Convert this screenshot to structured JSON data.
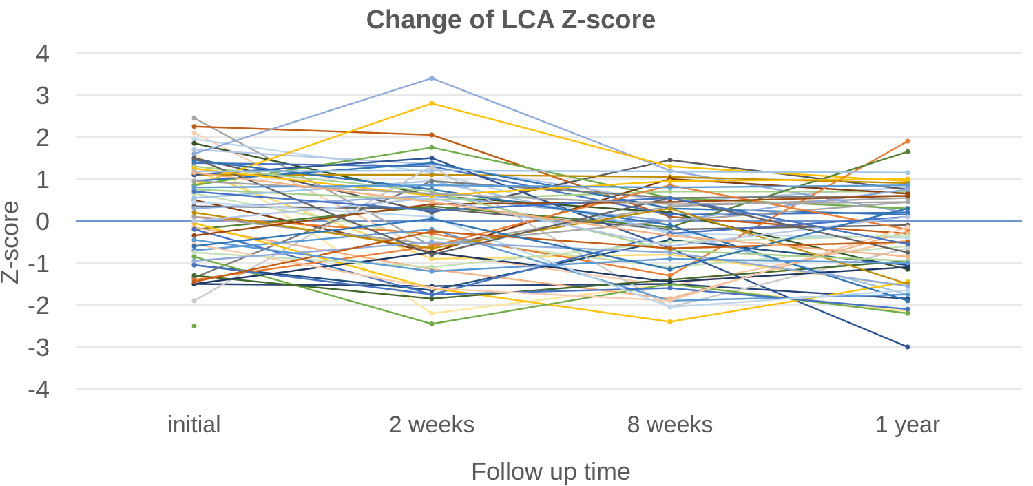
{
  "title": "Change of LCA Z-score",
  "chart_data": {
    "type": "line",
    "title": "Change of LCA Z-score",
    "xlabel": "Follow up time",
    "ylabel": "Z-score",
    "categories": [
      "initial",
      "2 weeks",
      "8 weeks",
      "1 year"
    ],
    "y_ticks": [
      4,
      3,
      2,
      1,
      0,
      -1,
      -2,
      -3,
      -4
    ],
    "ylim": [
      -4,
      4
    ],
    "grid": true,
    "legend_position": "none",
    "marker": "circle",
    "text_color": "#595959",
    "gridline_color": "#D9D9D9",
    "zero_line_color": "#4472C4",
    "series": [
      {
        "color": "#A5A5A5",
        "values": [
          2.45,
          -0.6,
          0.35,
          0.55
        ]
      },
      {
        "color": "#C55A11",
        "values": [
          2.25,
          2.05,
          0.1,
          -0.3
        ]
      },
      {
        "color": "#F8CBAD",
        "values": [
          2.1,
          -0.75,
          -1.55,
          -0.45
        ]
      },
      {
        "color": "#BDD7EE",
        "values": [
          1.95,
          1.15,
          -0.3,
          -0.4
        ]
      },
      {
        "color": "#375623",
        "values": [
          1.85,
          0.6,
          0.2,
          -1.15
        ]
      },
      {
        "color": "#B4C7E7",
        "values": [
          1.7,
          1.35,
          0.45,
          0.8
        ]
      },
      {
        "color": "#FFE699",
        "values": [
          1.6,
          -2.2,
          -1.5,
          -2.15
        ]
      },
      {
        "color": "#595959",
        "values": [
          1.5,
          0.2,
          1.45,
          0.75
        ]
      },
      {
        "color": "#8FAADC",
        "values": [
          1.6,
          3.4,
          1.2,
          0.2
        ]
      },
      {
        "color": "#4472C4",
        "values": [
          1.38,
          1.3,
          0.15,
          0.2
        ]
      },
      {
        "color": "#FFC000",
        "values": [
          0.85,
          2.8,
          1.3,
          0.95
        ]
      },
      {
        "color": "#FFD966",
        "values": [
          1.2,
          -0.9,
          -0.8,
          -1.55
        ]
      },
      {
        "color": "#70AD47",
        "values": [
          0.85,
          1.75,
          0.55,
          0.3
        ]
      },
      {
        "color": "#A9D18E",
        "values": [
          0.75,
          0.5,
          0.7,
          0.7
        ]
      },
      {
        "color": "#C5E0B4",
        "values": [
          0.65,
          -0.4,
          -1.1,
          -0.6
        ]
      },
      {
        "color": "#BF8F00",
        "values": [
          1.1,
          1.1,
          1.05,
          0.9
        ]
      },
      {
        "color": "#843C0C",
        "values": [
          0.5,
          -0.75,
          1.0,
          0.65
        ]
      },
      {
        "color": "#636363",
        "values": [
          0.35,
          0.3,
          -0.2,
          -0.1
        ]
      },
      {
        "color": "#ED7D31",
        "values": [
          0.1,
          -0.3,
          -1.3,
          1.9
        ]
      },
      {
        "color": "#2F5597",
        "values": [
          1.1,
          1.5,
          -0.65,
          -3.0
        ]
      },
      {
        "color": "#264478",
        "values": [
          -1.5,
          -1.55,
          -1.5,
          -1.85
        ]
      },
      {
        "color": "#538135",
        "values": [
          -0.2,
          0.35,
          -0.15,
          1.65
        ]
      },
      {
        "color": "#2E75B6",
        "values": [
          0.95,
          1.38,
          0.3,
          0.15
        ]
      },
      {
        "color": "#9DC3E6",
        "values": [
          0.55,
          0.95,
          -0.25,
          -1.75
        ]
      },
      {
        "color": "#1F4E79",
        "values": [
          -1.05,
          -1.65,
          -0.45,
          -1.05
        ]
      },
      {
        "color": "#F4B183",
        "values": [
          -0.15,
          -1.15,
          -1.85,
          -0.25
        ]
      },
      {
        "color": "#C9C9C9",
        "values": [
          -1.9,
          1.3,
          -2.05,
          -0.65
        ]
      },
      {
        "color": "#7B7B7B",
        "values": [
          -1.35,
          0.95,
          0.55,
          0.6
        ]
      },
      {
        "color": "#A5A5A5",
        "values": [
          0.1,
          -0.55,
          0.0,
          0.45
        ]
      },
      {
        "color": "#4472C4",
        "values": [
          -0.2,
          -1.75,
          -0.3,
          0.1
        ]
      },
      {
        "color": "#5B9BD5",
        "values": [
          -0.7,
          -0.2,
          -1.9,
          -1.75
        ]
      },
      {
        "color": "#8FAADC",
        "values": [
          0.3,
          0.6,
          0.0,
          0.75
        ]
      },
      {
        "color": "#FFC000",
        "values": [
          -0.05,
          -1.6,
          -2.4,
          -1.45
        ]
      },
      {
        "color": "#ED7D31",
        "values": [
          -1.4,
          -0.6,
          0.85,
          -0.2
        ]
      },
      {
        "color": "#70AD47",
        "values": [
          -0.85,
          -2.45,
          -1.5,
          -2.2
        ]
      },
      {
        "color": "#43682B",
        "values": [
          -1.3,
          -1.85,
          -1.4,
          -0.95
        ]
      },
      {
        "color": "#4472C4",
        "values": [
          -1.05,
          -1.75,
          -1.6,
          -2.1
        ]
      },
      {
        "color": "#2E75B6",
        "values": [
          1.45,
          0.75,
          -0.1,
          -1.9
        ]
      },
      {
        "color": "#203864",
        "values": [
          -1.5,
          -0.75,
          -1.45,
          -1.1
        ]
      },
      {
        "color": "#BF8F00",
        "values": [
          0.2,
          -0.65,
          0.3,
          -1.5
        ]
      },
      {
        "color": "#9E480E",
        "values": [
          -0.35,
          0.4,
          0.45,
          0.6
        ]
      },
      {
        "color": "#F8CBAD",
        "values": [
          -0.55,
          -1.6,
          -1.9,
          -0.15
        ]
      },
      {
        "color": "#BDD7EE",
        "values": [
          0.45,
          0.1,
          -2.05,
          -1.65
        ]
      },
      {
        "color": "#A9D18E",
        "values": [
          1.3,
          0.7,
          -0.7,
          -0.95
        ]
      },
      {
        "color": "#C5E0B4",
        "values": [
          -0.75,
          -1.1,
          -0.5,
          -0.35
        ]
      },
      {
        "color": "#8FAADC",
        "values": [
          -0.95,
          -0.5,
          -0.75,
          -1.55
        ]
      },
      {
        "color": "#B4C7E7",
        "values": [
          0.0,
          0.55,
          -0.6,
          0.1
        ]
      },
      {
        "color": "#636363",
        "values": [
          1.5,
          -0.8,
          0.55,
          -0.75
        ]
      },
      {
        "color": "#C55A11",
        "values": [
          -1.45,
          -0.25,
          -0.65,
          -0.5
        ]
      },
      {
        "color": "#70AD47",
        "values": [
          -2.5,
          null,
          null,
          null
        ]
      },
      {
        "color": "#FFC000",
        "values": [
          1.25,
          0.6,
          0.95,
          1.0
        ]
      },
      {
        "color": "#4472C4",
        "values": [
          0.7,
          0.25,
          0.55,
          -0.55
        ]
      },
      {
        "color": "#5B9BD5",
        "values": [
          -0.45,
          -1.2,
          -0.9,
          -1.0
        ]
      },
      {
        "color": "#A5A5A5",
        "values": [
          0.95,
          0.65,
          0.4,
          0.45
        ]
      },
      {
        "color": "#2E75B6",
        "values": [
          -0.6,
          0.05,
          -1.15,
          0.3
        ]
      },
      {
        "color": "#9DC3E6",
        "values": [
          1.18,
          1.2,
          1.18,
          1.15
        ]
      },
      {
        "color": "#5B9BD5",
        "values": [
          0.8,
          0.85,
          0.8,
          0.85
        ]
      },
      {
        "color": "#F4B183",
        "values": [
          1.15,
          0.45,
          -0.35,
          -0.85
        ]
      }
    ]
  }
}
